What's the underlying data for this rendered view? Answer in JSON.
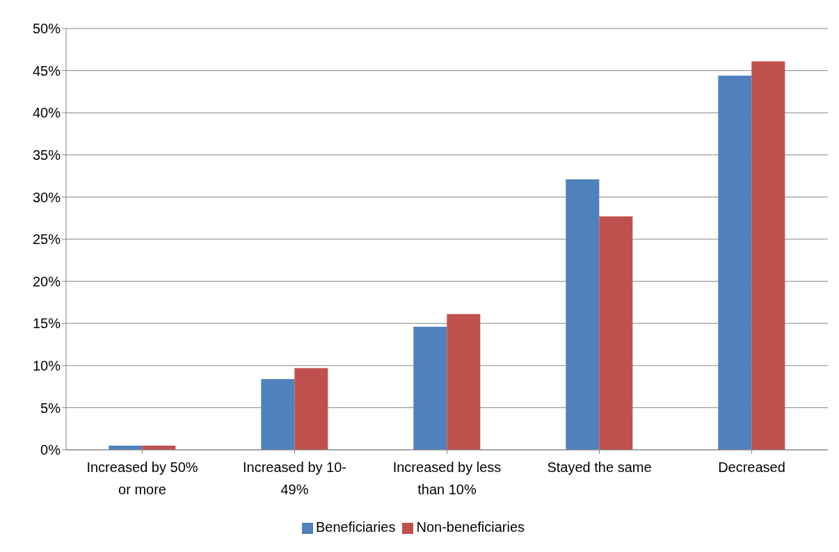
{
  "chart_data": {
    "type": "bar",
    "categories": [
      "Increased by 50% or more",
      "Increased by 10-49%",
      "Increased by less than 10%",
      "Stayed the same",
      "Decreased"
    ],
    "series": [
      {
        "name": "Beneficiaries",
        "color": "#4f81bd",
        "values": [
          0.5,
          8.4,
          14.6,
          32.1,
          44.4
        ]
      },
      {
        "name": "Non-beneficiaries",
        "color": "#c0504d",
        "values": [
          0.5,
          9.7,
          16.1,
          27.7,
          46.1
        ]
      }
    ],
    "ylim": [
      0,
      50
    ],
    "yticks": [
      {
        "value": 0,
        "label": "0%"
      },
      {
        "value": 5,
        "label": "5%"
      },
      {
        "value": 10,
        "label": "10%"
      },
      {
        "value": 15,
        "label": "15%"
      },
      {
        "value": 20,
        "label": "20%"
      },
      {
        "value": 25,
        "label": "25%"
      },
      {
        "value": 30,
        "label": "30%"
      },
      {
        "value": 35,
        "label": "35%"
      },
      {
        "value": 40,
        "label": "40%"
      },
      {
        "value": 45,
        "label": "45%"
      },
      {
        "value": 50,
        "label": "50%"
      }
    ],
    "grid": "y",
    "legend": "bottom"
  }
}
